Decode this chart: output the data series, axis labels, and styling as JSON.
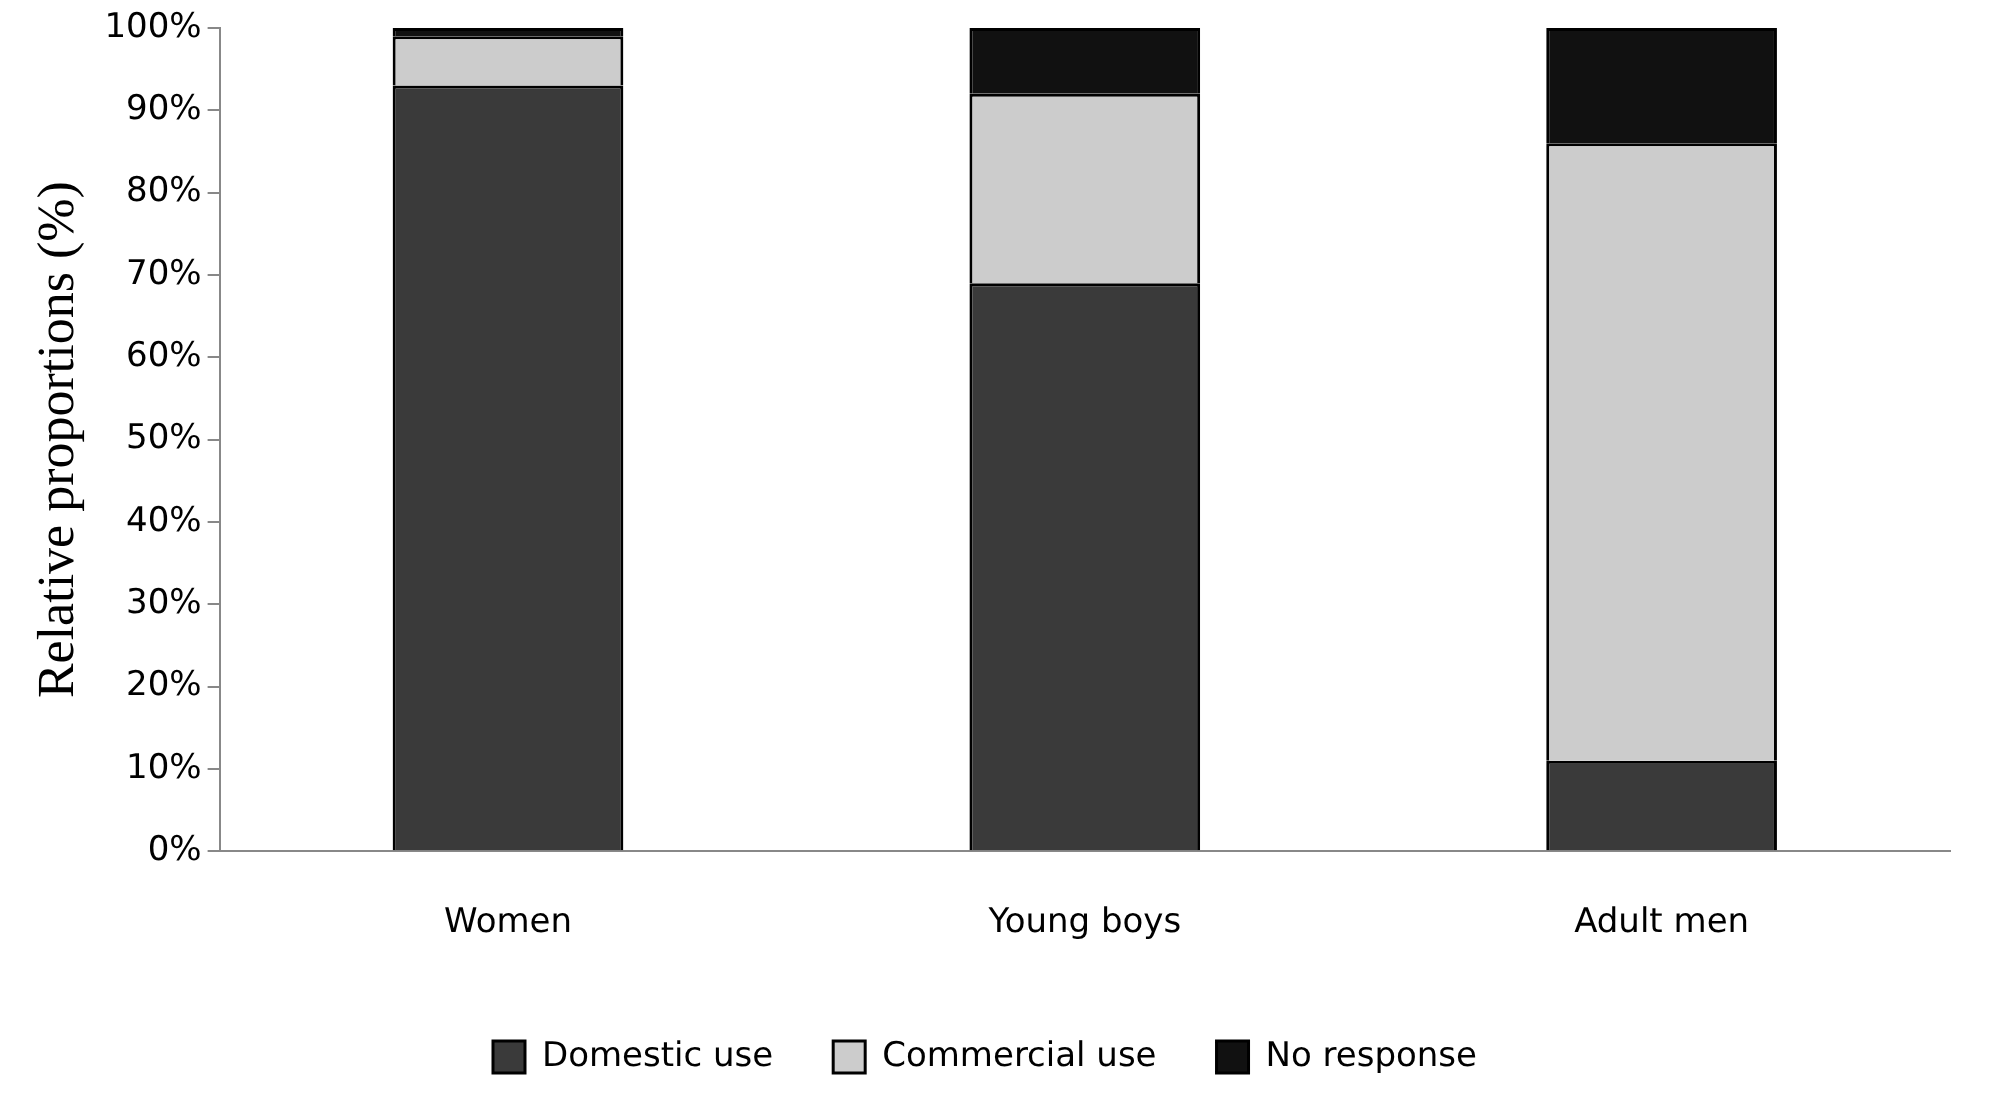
{
  "chart_data": {
    "type": "bar",
    "stacked": true,
    "ylabel": "Relative proportions (%)",
    "categories": [
      "Women",
      "Young boys",
      "Adult men"
    ],
    "series": [
      {
        "name": "Domestic use",
        "color": "#3a3a3a",
        "values": [
          93,
          69,
          11
        ]
      },
      {
        "name": "Commercial use",
        "color": "#cccccc",
        "values": [
          6,
          23,
          75
        ]
      },
      {
        "name": "No response",
        "color": "#111111",
        "values": [
          1,
          8,
          14
        ]
      }
    ],
    "ylim": [
      0,
      100
    ],
    "yticks": [
      {
        "value": 0,
        "label": "0%"
      },
      {
        "value": 10,
        "label": "10%"
      },
      {
        "value": 20,
        "label": "20%"
      },
      {
        "value": 30,
        "label": "30%"
      },
      {
        "value": 40,
        "label": "40%"
      },
      {
        "value": 50,
        "label": "50%"
      },
      {
        "value": 60,
        "label": "60%"
      },
      {
        "value": 70,
        "label": "70%"
      },
      {
        "value": 80,
        "label": "80%"
      },
      {
        "value": 90,
        "label": "90%"
      },
      {
        "value": 100,
        "label": "100%"
      }
    ],
    "grid": false,
    "legend": "bottom"
  }
}
